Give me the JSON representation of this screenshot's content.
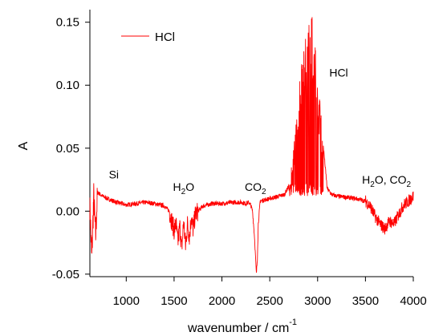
{
  "colors": {
    "series": "#ff0000",
    "axis": "#000000",
    "background": "#ffffff"
  },
  "chart_data": {
    "type": "line",
    "title": "",
    "xlabel": "wavenumber / cm",
    "xlabel_sup": "-1",
    "ylabel": "A",
    "xlim": [
      620,
      4000
    ],
    "ylim": [
      -0.052,
      0.16
    ],
    "xticks": [
      1000,
      1500,
      2000,
      2500,
      3000,
      3500,
      4000
    ],
    "xtick_labels": [
      "1000",
      "1500",
      "2000",
      "2500",
      "3000",
      "3500",
      "4000"
    ],
    "yticks": [
      -0.05,
      0.0,
      0.05,
      0.1,
      0.15
    ],
    "ytick_labels": [
      "-0.05",
      "0.00",
      "0.05",
      "0.10",
      "0.15"
    ],
    "grid": false,
    "legend": {
      "position": "top-left",
      "entries": [
        "HCl"
      ]
    },
    "series": [
      {
        "name": "HCl",
        "color": "#ff0000",
        "x": [
          620,
          640,
          660,
          680,
          700,
          750,
          800,
          900,
          1000,
          1100,
          1200,
          1300,
          1400,
          1450,
          1500,
          1520,
          1540,
          1560,
          1580,
          1600,
          1620,
          1640,
          1660,
          1680,
          1700,
          1720,
          1750,
          1800,
          1900,
          2000,
          2100,
          2200,
          2250,
          2280,
          2300,
          2320,
          2340,
          2350,
          2360,
          2370,
          2380,
          2400,
          2450,
          2500,
          2550,
          2600,
          2650,
          2700,
          2750,
          2800,
          2850,
          2900,
          2950,
          3000,
          3050,
          3100,
          3150,
          3200,
          3300,
          3400,
          3500,
          3550,
          3600,
          3650,
          3700,
          3750,
          3800,
          3850,
          3900,
          3950,
          4000
        ],
        "y": [
          0.005,
          -0.038,
          0.012,
          -0.02,
          0.015,
          0.012,
          0.01,
          0.007,
          0.005,
          0.006,
          0.007,
          0.006,
          0.004,
          0.0,
          -0.015,
          -0.01,
          -0.025,
          -0.012,
          -0.03,
          -0.008,
          -0.028,
          -0.01,
          -0.02,
          -0.005,
          -0.015,
          -0.003,
          0.0,
          0.004,
          0.006,
          0.006,
          0.007,
          0.007,
          0.006,
          0.007,
          0.005,
          0.0,
          -0.02,
          -0.035,
          -0.05,
          -0.038,
          -0.01,
          0.008,
          0.009,
          0.01,
          0.011,
          0.012,
          0.013,
          0.02,
          0.05,
          0.1,
          0.13,
          0.148,
          0.157,
          0.12,
          0.06,
          0.018,
          0.013,
          0.012,
          0.011,
          0.01,
          0.008,
          0.004,
          -0.004,
          -0.01,
          -0.014,
          -0.008,
          -0.01,
          -0.002,
          0.005,
          0.008,
          0.012
        ]
      }
    ],
    "annotations": [
      {
        "text": "Si",
        "x": 870,
        "y": 0.026
      },
      {
        "text": "H",
        "sub": "2",
        "after": "O",
        "x": 1600,
        "y": 0.016
      },
      {
        "text": "CO",
        "sub": "2",
        "after": "",
        "x": 2350,
        "y": 0.016
      },
      {
        "text": "HCl",
        "x": 3220,
        "y": 0.107
      },
      {
        "text": "H",
        "sub": "2",
        "after": "O, CO",
        "sub2": "2",
        "x": 3720,
        "y": 0.022
      }
    ]
  }
}
